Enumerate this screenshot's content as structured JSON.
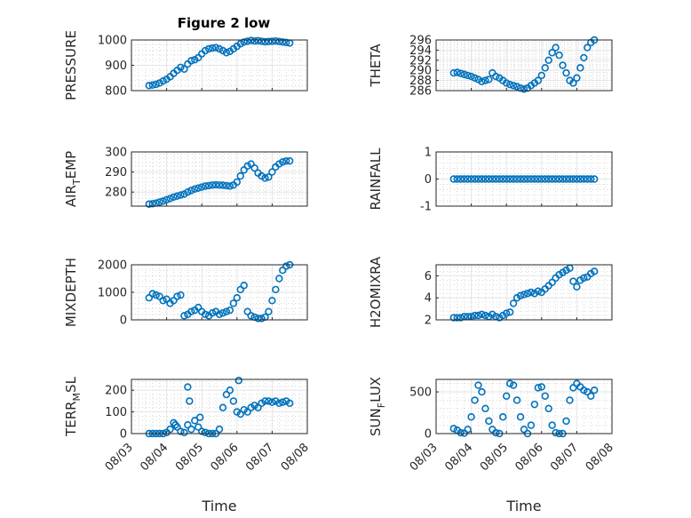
{
  "figure_title": "Figure 2 low",
  "colors": {
    "marker": "#0072BD",
    "axis": "#262626",
    "grid": "#dfdfdf",
    "minor_grid": "#bdbdbd"
  },
  "chart_data": [
    {
      "type": "scatter",
      "ylabel": "PRESSURE",
      "ylim": [
        800,
        1000
      ],
      "yticks": [
        "800",
        "900",
        "1000"
      ],
      "ytick_values": [
        800,
        900,
        1000
      ],
      "xlim": [
        "08/03",
        "08/08"
      ],
      "xticks": [],
      "grid": true,
      "minor_grid": true,
      "series": [
        {
          "x": [
            3.5,
            3.6,
            3.7,
            3.8,
            3.9,
            4.0,
            4.1,
            4.2,
            4.3,
            4.4,
            4.5,
            4.6,
            4.7,
            4.8,
            4.9,
            5.0,
            5.1,
            5.2,
            5.3,
            5.4,
            5.5,
            5.6,
            5.7,
            5.8,
            5.9,
            6.0,
            6.1,
            6.2,
            6.3,
            6.4,
            6.5,
            6.6,
            6.7,
            6.8,
            6.9,
            7.0,
            7.1,
            7.2,
            7.3,
            7.4,
            7.5
          ],
          "y": [
            820,
            822,
            825,
            830,
            838,
            845,
            855,
            868,
            880,
            892,
            885,
            905,
            918,
            922,
            930,
            945,
            958,
            965,
            968,
            970,
            965,
            958,
            950,
            955,
            965,
            975,
            985,
            992,
            995,
            998,
            996,
            997,
            995,
            993,
            994,
            995,
            996,
            994,
            992,
            990,
            988
          ]
        }
      ]
    },
    {
      "type": "scatter",
      "ylabel": "THETA",
      "ylim": [
        286,
        296
      ],
      "yticks": [
        "286",
        "288",
        "290",
        "292",
        "294",
        "296"
      ],
      "ytick_values": [
        286,
        288,
        290,
        292,
        294,
        296
      ],
      "xlim": [
        "08/03",
        "08/08"
      ],
      "xticks": [],
      "grid": true,
      "minor_grid": true,
      "series": [
        {
          "x": [
            3.5,
            3.6,
            3.7,
            3.8,
            3.9,
            4.0,
            4.1,
            4.2,
            4.3,
            4.4,
            4.5,
            4.6,
            4.7,
            4.8,
            4.9,
            5.0,
            5.1,
            5.2,
            5.3,
            5.4,
            5.5,
            5.6,
            5.7,
            5.8,
            5.9,
            6.0,
            6.1,
            6.2,
            6.3,
            6.4,
            6.5,
            6.6,
            6.7,
            6.8,
            6.9,
            7.0,
            7.1,
            7.2,
            7.3,
            7.4,
            7.5
          ],
          "y": [
            289.5,
            289.6,
            289.4,
            289.2,
            289.0,
            288.8,
            288.5,
            288.2,
            287.8,
            288.0,
            288.2,
            289.5,
            288.8,
            288.5,
            288.0,
            287.5,
            287.2,
            287.0,
            286.8,
            286.5,
            286.3,
            286.5,
            287.0,
            287.5,
            288.0,
            289.0,
            290.5,
            292.0,
            293.5,
            294.5,
            293.0,
            291.0,
            289.5,
            288.0,
            287.5,
            288.5,
            290.5,
            292.5,
            294.5,
            295.5,
            296.0
          ]
        }
      ]
    },
    {
      "type": "scatter",
      "ylabel_main": "AIR",
      "ylabel_sub": "T",
      "ylabel_rest": "EMP",
      "ylim": [
        273,
        300
      ],
      "yticks": [
        "280",
        "290",
        "300"
      ],
      "ytick_values": [
        280,
        290,
        300
      ],
      "xlim": [
        "08/03",
        "08/08"
      ],
      "xticks": [],
      "grid": true,
      "minor_grid": true,
      "series": [
        {
          "x": [
            3.5,
            3.6,
            3.7,
            3.8,
            3.9,
            4.0,
            4.1,
            4.2,
            4.3,
            4.4,
            4.5,
            4.6,
            4.7,
            4.8,
            4.9,
            5.0,
            5.1,
            5.2,
            5.3,
            5.4,
            5.5,
            5.6,
            5.7,
            5.8,
            5.9,
            6.0,
            6.1,
            6.2,
            6.3,
            6.4,
            6.5,
            6.6,
            6.7,
            6.8,
            6.9,
            7.0,
            7.1,
            7.2,
            7.3,
            7.4,
            7.5
          ],
          "y": [
            274.0,
            274.2,
            274.5,
            275.0,
            275.5,
            276.2,
            276.8,
            277.5,
            278.0,
            278.5,
            279.0,
            280.0,
            280.8,
            281.5,
            282.0,
            282.5,
            283.0,
            283.2,
            283.5,
            283.6,
            283.5,
            283.4,
            283.2,
            283.0,
            283.5,
            285.0,
            288.0,
            291.0,
            293.0,
            294.0,
            292.0,
            289.5,
            288.0,
            287.0,
            287.5,
            290.0,
            292.5,
            294.0,
            295.0,
            295.5,
            295.5
          ]
        }
      ]
    },
    {
      "type": "scatter",
      "ylabel": "RAINFALL",
      "ylim": [
        -1,
        1
      ],
      "yticks": [
        "-1",
        "0",
        "1"
      ],
      "ytick_values": [
        -1,
        0,
        1
      ],
      "xlim": [
        "08/03",
        "08/08"
      ],
      "xticks": [],
      "grid": true,
      "minor_grid": true,
      "series": [
        {
          "x": [
            3.5,
            3.6,
            3.7,
            3.8,
            3.9,
            4.0,
            4.1,
            4.2,
            4.3,
            4.4,
            4.5,
            4.6,
            4.7,
            4.8,
            4.9,
            5.0,
            5.1,
            5.2,
            5.3,
            5.4,
            5.5,
            5.6,
            5.7,
            5.8,
            5.9,
            6.0,
            6.1,
            6.2,
            6.3,
            6.4,
            6.5,
            6.6,
            6.7,
            6.8,
            6.9,
            7.0,
            7.1,
            7.2,
            7.3,
            7.4,
            7.5
          ],
          "y": [
            0,
            0,
            0,
            0,
            0,
            0,
            0,
            0,
            0,
            0,
            0,
            0,
            0,
            0,
            0,
            0,
            0,
            0,
            0,
            0,
            0,
            0,
            0,
            0,
            0,
            0,
            0,
            0,
            0,
            0,
            0,
            0,
            0,
            0,
            0,
            0,
            0,
            0,
            0,
            0,
            0
          ]
        }
      ]
    },
    {
      "type": "scatter",
      "ylabel": "MIXDEPTH",
      "ylim": [
        0,
        2000
      ],
      "yticks": [
        "0",
        "1000",
        "2000"
      ],
      "ytick_values": [
        0,
        1000,
        2000
      ],
      "xlim": [
        "08/03",
        "08/08"
      ],
      "xticks": [],
      "grid": true,
      "minor_grid": true,
      "series": [
        {
          "x": [
            3.5,
            3.6,
            3.7,
            3.8,
            3.9,
            4.0,
            4.1,
            4.2,
            4.3,
            4.4,
            4.5,
            4.6,
            4.7,
            4.8,
            4.9,
            5.0,
            5.1,
            5.2,
            5.3,
            5.4,
            5.5,
            5.6,
            5.7,
            5.8,
            5.9,
            6.0,
            6.1,
            6.2,
            6.3,
            6.4,
            6.5,
            6.6,
            6.7,
            6.8,
            6.9,
            7.0,
            7.1,
            7.2,
            7.3,
            7.4,
            7.5
          ],
          "y": [
            800,
            950,
            900,
            850,
            700,
            750,
            600,
            700,
            850,
            900,
            150,
            200,
            300,
            350,
            450,
            300,
            200,
            150,
            250,
            300,
            200,
            250,
            300,
            350,
            600,
            800,
            1100,
            1250,
            300,
            150,
            100,
            50,
            50,
            100,
            300,
            700,
            1100,
            1500,
            1800,
            1950,
            2000
          ]
        }
      ]
    },
    {
      "type": "scatter",
      "ylabel": "H2OMIXRA",
      "ylim": [
        2,
        7
      ],
      "yticks": [
        "2",
        "4",
        "6"
      ],
      "ytick_values": [
        2,
        4,
        6
      ],
      "xlim": [
        "08/03",
        "08/08"
      ],
      "xticks": [],
      "grid": true,
      "minor_grid": true,
      "series": [
        {
          "x": [
            3.5,
            3.6,
            3.7,
            3.8,
            3.9,
            4.0,
            4.1,
            4.2,
            4.3,
            4.4,
            4.5,
            4.6,
            4.7,
            4.8,
            4.9,
            5.0,
            5.1,
            5.2,
            5.3,
            5.4,
            5.5,
            5.6,
            5.7,
            5.8,
            5.9,
            6.0,
            6.1,
            6.2,
            6.3,
            6.4,
            6.5,
            6.6,
            6.7,
            6.8,
            6.9,
            7.0,
            7.1,
            7.2,
            7.3,
            7.4,
            7.5
          ],
          "y": [
            2.2,
            2.2,
            2.2,
            2.3,
            2.3,
            2.3,
            2.4,
            2.4,
            2.5,
            2.4,
            2.3,
            2.5,
            2.3,
            2.2,
            2.4,
            2.6,
            2.7,
            3.5,
            4.0,
            4.2,
            4.3,
            4.4,
            4.5,
            4.4,
            4.6,
            4.5,
            4.8,
            5.1,
            5.4,
            5.8,
            6.1,
            6.3,
            6.5,
            6.7,
            5.5,
            5.0,
            5.6,
            5.8,
            5.9,
            6.2,
            6.4
          ]
        }
      ]
    },
    {
      "type": "scatter",
      "ylabel_main": "TERR",
      "ylabel_sub": "M",
      "ylabel_rest": "SL",
      "ylim": [
        0,
        250
      ],
      "yticks": [
        "0",
        "100",
        "200"
      ],
      "ytick_values": [
        0,
        100,
        200
      ],
      "xlim": [
        "08/03",
        "08/08"
      ],
      "xticks": [
        "08/03",
        "08/04",
        "08/05",
        "08/06",
        "08/07",
        "08/08"
      ],
      "xlabel": "Time",
      "grid": true,
      "minor_grid": true,
      "series": [
        {
          "x": [
            3.5,
            3.6,
            3.7,
            3.8,
            3.9,
            4.0,
            4.1,
            4.2,
            4.3,
            4.4,
            4.5,
            4.6,
            4.7,
            4.8,
            4.9,
            5.0,
            5.1,
            5.2,
            5.3,
            5.4,
            5.5,
            5.6,
            5.7,
            5.8,
            5.9,
            6.0,
            6.1,
            6.2,
            6.3,
            6.4,
            6.5,
            6.6,
            6.7,
            6.8,
            6.9,
            7.0,
            7.1,
            7.2,
            7.3,
            7.4,
            7.5,
            4.6,
            4.65,
            6.05,
            4.25,
            4.95
          ],
          "y": [
            0,
            0,
            0,
            0,
            0,
            5,
            20,
            50,
            30,
            10,
            5,
            40,
            20,
            60,
            30,
            10,
            5,
            0,
            0,
            0,
            20,
            120,
            180,
            200,
            150,
            100,
            90,
            110,
            100,
            120,
            130,
            120,
            140,
            150,
            150,
            145,
            150,
            140,
            145,
            150,
            140,
            215,
            150,
            245,
            40,
            75
          ]
        }
      ]
    },
    {
      "type": "scatter",
      "ylabel_main": "SUN",
      "ylabel_sub": "F",
      "ylabel_rest": "LUX",
      "ylim": [
        0,
        650
      ],
      "yticks": [
        "0",
        "500"
      ],
      "ytick_values": [
        0,
        500
      ],
      "xlim": [
        "08/03",
        "08/08"
      ],
      "xticks": [
        "08/03",
        "08/04",
        "08/05",
        "08/06",
        "08/07",
        "08/08"
      ],
      "xlabel": "Time",
      "grid": true,
      "minor_grid": true,
      "series": [
        {
          "x": [
            3.5,
            3.6,
            3.7,
            3.8,
            3.9,
            4.0,
            4.1,
            4.2,
            4.3,
            4.4,
            4.5,
            4.6,
            4.7,
            4.8,
            4.9,
            5.0,
            5.1,
            5.2,
            5.3,
            5.4,
            5.5,
            5.6,
            5.7,
            5.8,
            5.9,
            6.0,
            6.1,
            6.2,
            6.3,
            6.4,
            6.5,
            6.6,
            6.7,
            6.8,
            6.9,
            7.0,
            7.1,
            7.2,
            7.3,
            7.4,
            7.5
          ],
          "y": [
            60,
            40,
            10,
            5,
            50,
            200,
            400,
            580,
            500,
            300,
            150,
            50,
            10,
            0,
            200,
            450,
            600,
            580,
            400,
            200,
            50,
            0,
            100,
            350,
            550,
            560,
            450,
            300,
            100,
            10,
            0,
            0,
            150,
            400,
            550,
            600,
            560,
            520,
            500,
            450,
            520
          ]
        }
      ]
    }
  ]
}
